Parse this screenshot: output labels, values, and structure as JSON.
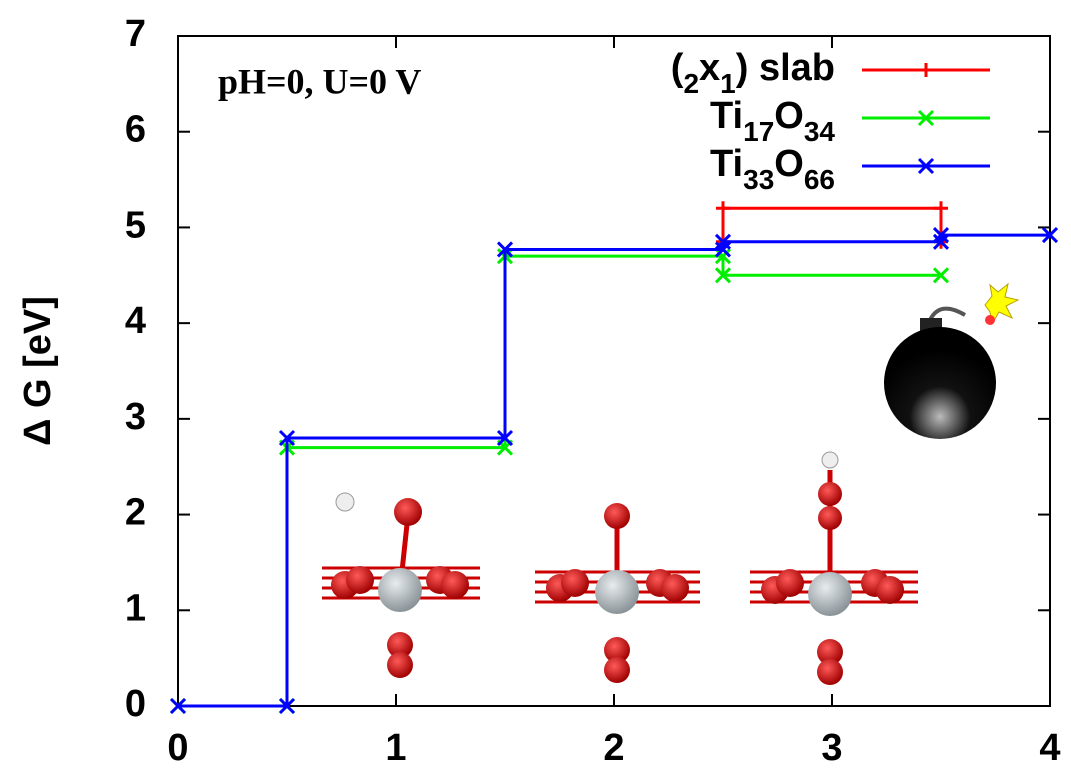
{
  "chart_data": {
    "type": "step",
    "annotation": "pH=0, U=0 V",
    "y_label": "Δ G [eV]",
    "xlim": [
      0,
      4
    ],
    "xticks": [
      0,
      1,
      2,
      3,
      4
    ],
    "ylim": [
      0,
      7
    ],
    "yticks": [
      0,
      1,
      2,
      3,
      4,
      5,
      6,
      7
    ],
    "legend": "top-right",
    "series": [
      {
        "name": "(2x1) slab",
        "color": "#ff0000",
        "marker": "plus",
        "x": [
          2.5,
          2.5,
          3.5,
          3.5
        ],
        "values": [
          4.85,
          5.2,
          5.2,
          4.85
        ]
      },
      {
        "name": "Ti17O34",
        "color": "#00ee00",
        "marker": "cross",
        "x": [
          0,
          0.5,
          0.5,
          1.5,
          1.5,
          2.5,
          2.5,
          3.5
        ],
        "values": [
          0,
          0,
          2.7,
          2.7,
          4.7,
          4.7,
          4.5,
          4.5
        ]
      },
      {
        "name": "Ti33O66",
        "color": "#0000ff",
        "marker": "cross",
        "x": [
          0,
          0.5,
          0.5,
          1.5,
          1.5,
          2.5,
          2.5,
          3.5,
          3.5,
          4
        ],
        "values": [
          0,
          0,
          2.8,
          2.8,
          4.77,
          4.77,
          4.85,
          4.85,
          4.92,
          4.92
        ]
      }
    ]
  }
}
